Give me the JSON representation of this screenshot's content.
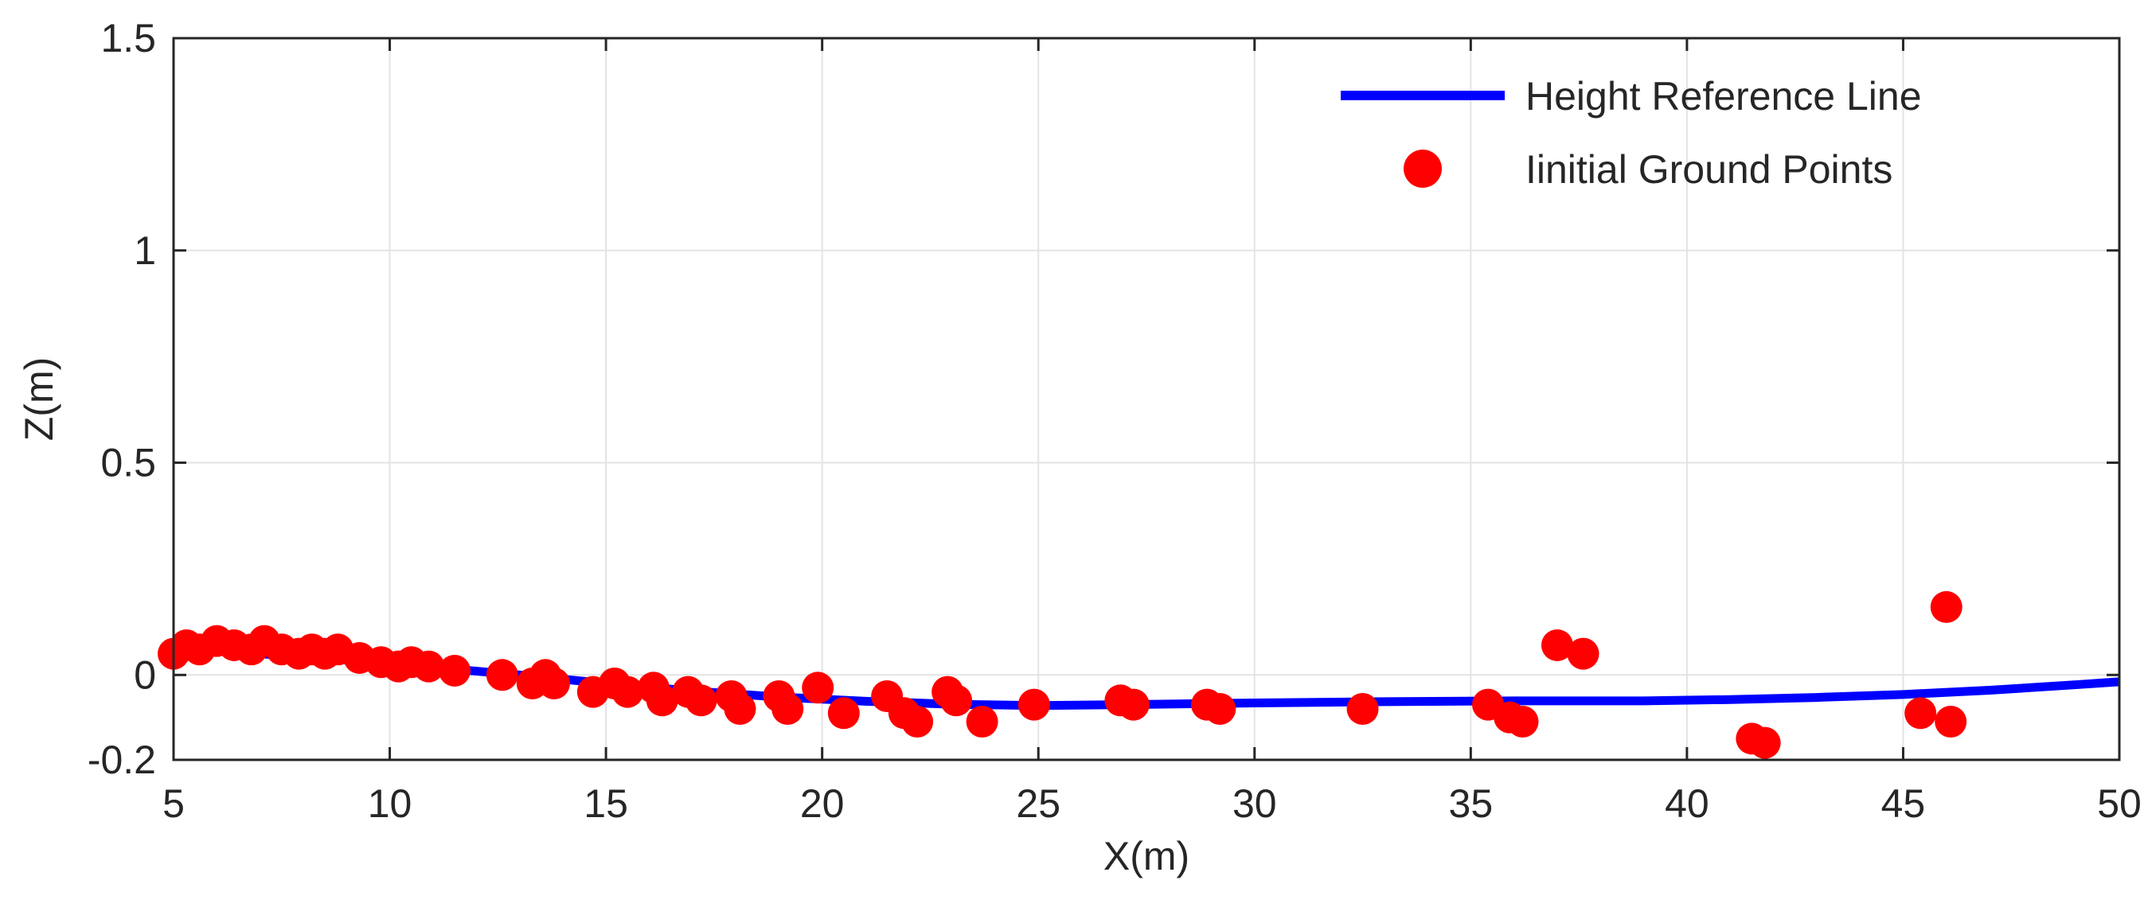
{
  "chart_data": {
    "type": "line",
    "title": "",
    "xlabel": "X(m)",
    "ylabel": "Z(m)",
    "xlim": [
      5,
      50
    ],
    "ylim": [
      -0.2,
      1.5
    ],
    "xticks": [
      5,
      10,
      15,
      20,
      25,
      30,
      35,
      40,
      45,
      50
    ],
    "xtick_labels": [
      "5",
      "10",
      "15",
      "20",
      "25",
      "30",
      "35",
      "40",
      "45",
      "50"
    ],
    "yticks": [
      -0.2,
      0,
      0.5,
      1,
      1.5
    ],
    "ytick_labels": [
      "-0.2",
      "0",
      "0.5",
      "1",
      "1.5"
    ],
    "grid": true,
    "legend_position": "top-right",
    "colors": {
      "line": "#0000ff",
      "points": "#ff0000",
      "grid": "#e3e3e3",
      "axis": "#262626"
    },
    "series": [
      {
        "name": "Height Reference Line",
        "kind": "line",
        "x": [
          5,
          7,
          9,
          11,
          13,
          15,
          17,
          19,
          21,
          23,
          25,
          27,
          30,
          33,
          36,
          39,
          41,
          43,
          45,
          47,
          49,
          50
        ],
        "y": [
          0.065,
          0.05,
          0.035,
          0.018,
          0.0,
          -0.02,
          -0.038,
          -0.052,
          -0.062,
          -0.069,
          -0.072,
          -0.07,
          -0.066,
          -0.063,
          -0.061,
          -0.061,
          -0.058,
          -0.053,
          -0.046,
          -0.036,
          -0.023,
          -0.016
        ]
      },
      {
        "name": "Iinitial Ground Points",
        "kind": "scatter",
        "x": [
          5.0,
          5.3,
          5.6,
          6.0,
          6.4,
          6.8,
          7.1,
          7.5,
          7.9,
          8.2,
          8.5,
          8.8,
          9.3,
          9.8,
          10.2,
          10.5,
          10.9,
          11.5,
          12.6,
          13.3,
          13.6,
          13.8,
          14.7,
          15.2,
          15.5,
          16.1,
          16.3,
          16.9,
          17.2,
          17.9,
          18.1,
          19.0,
          19.2,
          19.9,
          20.5,
          21.5,
          21.9,
          22.2,
          22.9,
          23.1,
          23.7,
          24.9,
          26.9,
          27.2,
          28.9,
          29.2,
          32.5,
          35.4,
          35.9,
          36.2,
          37.0,
          37.6,
          41.5,
          41.8,
          45.4,
          46.0,
          46.1
        ],
        "y": [
          0.05,
          0.07,
          0.06,
          0.08,
          0.07,
          0.06,
          0.08,
          0.06,
          0.05,
          0.06,
          0.05,
          0.06,
          0.04,
          0.03,
          0.02,
          0.03,
          0.02,
          0.01,
          0.0,
          -0.02,
          0.0,
          -0.02,
          -0.04,
          -0.02,
          -0.04,
          -0.03,
          -0.06,
          -0.04,
          -0.06,
          -0.05,
          -0.08,
          -0.05,
          -0.08,
          -0.03,
          -0.09,
          -0.05,
          -0.09,
          -0.11,
          -0.04,
          -0.06,
          -0.11,
          -0.07,
          -0.06,
          -0.07,
          -0.07,
          -0.08,
          -0.08,
          -0.07,
          -0.1,
          -0.11,
          0.07,
          0.05,
          -0.15,
          -0.16,
          -0.09,
          0.16,
          -0.11
        ]
      }
    ]
  }
}
